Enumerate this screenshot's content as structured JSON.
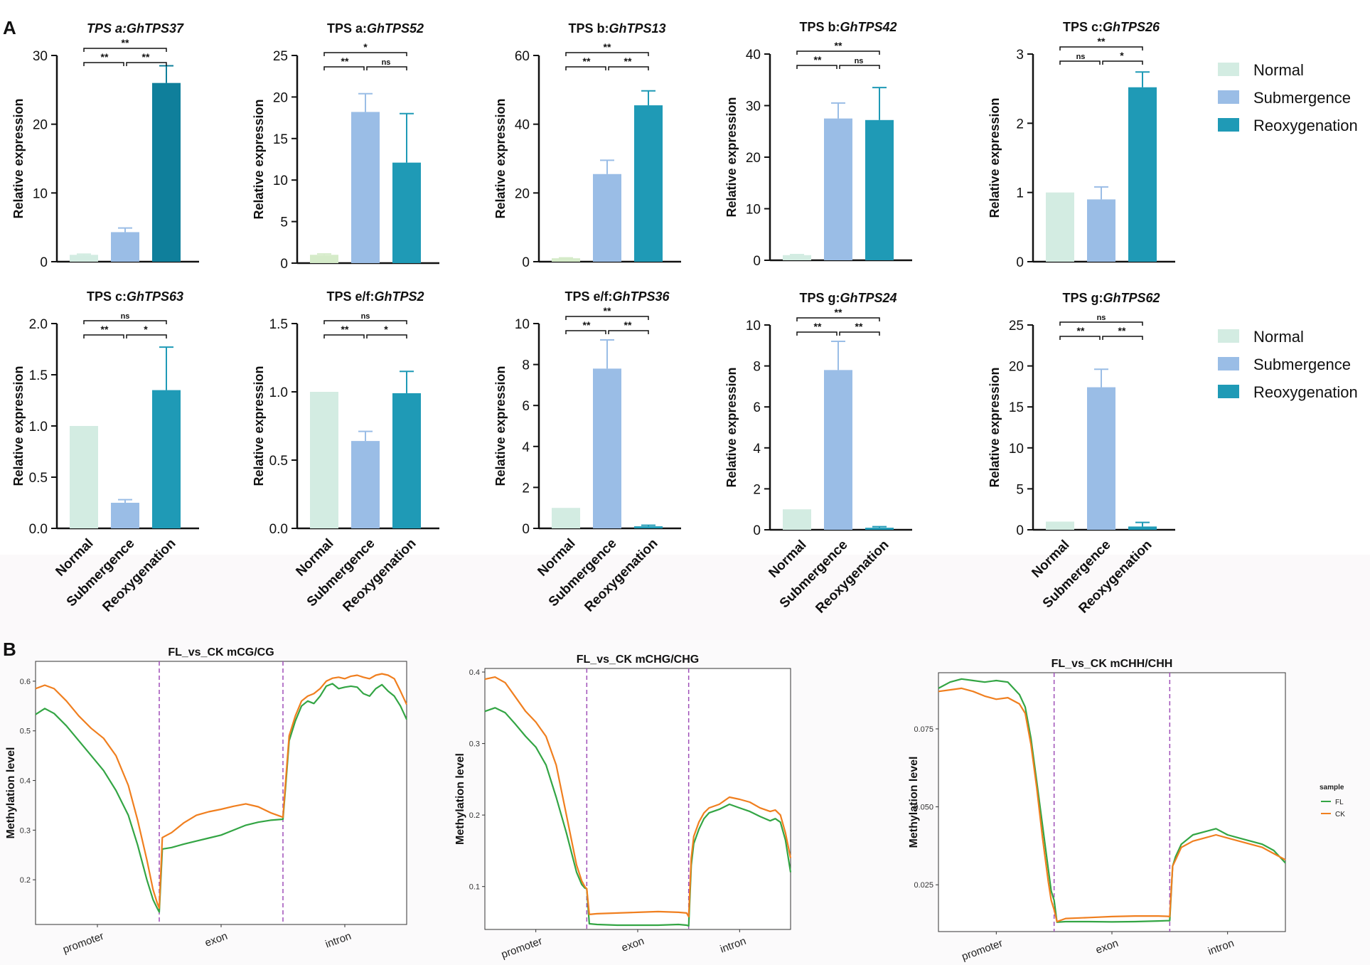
{
  "figure": {
    "panel_a_label": "A",
    "panel_b_label": "B"
  },
  "colors": {
    "normal": "#d3ece2",
    "normal_green": "#d5ebc9",
    "submergence": "#9abde6",
    "reoxygenation": "#1f9ab6",
    "reoxygenation_dark": "#0f7f9b",
    "fl": "#33a544",
    "ck": "#f07f1f",
    "divider": "#9f4fb8"
  },
  "legend": {
    "items": [
      "Normal",
      "Submergence",
      "Reoxygenation"
    ]
  },
  "bar_common": {
    "ylabel": "Relative expression",
    "categories": [
      "Normal",
      "Submergence",
      "Reoxygenation"
    ]
  },
  "chart_data": [
    {
      "type": "bar",
      "title_prefix": "TPS a:",
      "title_gene": "GhTPS37",
      "title_italic_all": true,
      "ylim": [
        0,
        30
      ],
      "yticks": [
        "0",
        "10",
        "20",
        "30"
      ],
      "values": [
        1,
        4.3,
        26
      ],
      "errors": [
        0.1,
        0.6,
        2.5
      ],
      "sig": [
        {
          "label": "**",
          "pair": "1-2",
          "level": 1
        },
        {
          "label": "**",
          "pair": "2-3",
          "level": 1
        },
        {
          "label": "**",
          "pair": "1-3",
          "level": 2
        }
      ]
    },
    {
      "type": "bar",
      "title_prefix": "TPS a:",
      "title_gene": "GhTPS52",
      "ylim": [
        0,
        25
      ],
      "yticks": [
        "0",
        "5",
        "10",
        "15",
        "20",
        "25"
      ],
      "values": [
        1,
        18.2,
        12.1
      ],
      "errors": [
        0.1,
        2.2,
        5.9
      ],
      "sig": [
        {
          "label": "**",
          "pair": "1-2",
          "level": 1
        },
        {
          "label": "ns",
          "pair": "2-3",
          "level": 1
        },
        {
          "label": "*",
          "pair": "1-3",
          "level": 2
        }
      ]
    },
    {
      "type": "bar",
      "title_prefix": "TPS b:",
      "title_gene": "GhTPS13",
      "ylim": [
        0,
        60
      ],
      "yticks": [
        "0",
        "20",
        "40",
        "60"
      ],
      "values": [
        1,
        25.5,
        45.5
      ],
      "errors": [
        0.1,
        4,
        4.2
      ],
      "sig": [
        {
          "label": "**",
          "pair": "1-2",
          "level": 1
        },
        {
          "label": "**",
          "pair": "2-3",
          "level": 1
        },
        {
          "label": "**",
          "pair": "1-3",
          "level": 2
        }
      ]
    },
    {
      "type": "bar",
      "title_prefix": "TPS b:",
      "title_gene": "GhTPS42",
      "ylim": [
        0,
        40
      ],
      "yticks": [
        "0",
        "10",
        "20",
        "30",
        "40"
      ],
      "values": [
        1,
        27.5,
        27.2
      ],
      "errors": [
        0.1,
        3,
        6.3
      ],
      "sig": [
        {
          "label": "**",
          "pair": "1-2",
          "level": 1
        },
        {
          "label": "ns",
          "pair": "2-3",
          "level": 1
        },
        {
          "label": "**",
          "pair": "1-3",
          "level": 2
        }
      ]
    },
    {
      "type": "bar",
      "title_prefix": "TPS c:",
      "title_gene": "GhTPS26",
      "ylim": [
        0,
        3
      ],
      "yticks": [
        "0",
        "1",
        "2",
        "3"
      ],
      "values": [
        1,
        0.9,
        2.52
      ],
      "errors": [
        0,
        0.18,
        0.22
      ],
      "sig": [
        {
          "label": "ns",
          "pair": "1-2",
          "level": 1
        },
        {
          "label": "*",
          "pair": "2-3",
          "level": 1
        },
        {
          "label": "**",
          "pair": "1-3",
          "level": 2
        }
      ]
    },
    {
      "type": "bar",
      "title_prefix": "TPS c:",
      "title_gene": "GhTPS63",
      "ylim": [
        0,
        2
      ],
      "yticks": [
        "0.0",
        "0.5",
        "1.0",
        "1.5",
        "2.0"
      ],
      "values": [
        1,
        0.25,
        1.35
      ],
      "errors": [
        0,
        0.03,
        0.42
      ],
      "sig": [
        {
          "label": "**",
          "pair": "1-2",
          "level": 1
        },
        {
          "label": "*",
          "pair": "2-3",
          "level": 1
        },
        {
          "label": "ns",
          "pair": "1-3",
          "level": 2
        }
      ]
    },
    {
      "type": "bar",
      "title_prefix": "TPS e/f:",
      "title_gene": "GhTPS2",
      "ylim": [
        0,
        1.5
      ],
      "yticks": [
        "0.0",
        "0.5",
        "1.0",
        "1.5"
      ],
      "values": [
        1,
        0.64,
        0.99
      ],
      "errors": [
        0,
        0.07,
        0.16
      ],
      "sig": [
        {
          "label": "**",
          "pair": "1-2",
          "level": 1
        },
        {
          "label": "*",
          "pair": "2-3",
          "level": 1
        },
        {
          "label": "ns",
          "pair": "1-3",
          "level": 2
        }
      ]
    },
    {
      "type": "bar",
      "title_prefix": "TPS e/f:",
      "title_gene": "GhTPS36",
      "ylim": [
        0,
        10
      ],
      "yticks": [
        "0",
        "2",
        "4",
        "6",
        "8",
        "10"
      ],
      "values": [
        1,
        7.8,
        0.1
      ],
      "errors": [
        0,
        1.4,
        0.05
      ],
      "sig": [
        {
          "label": "**",
          "pair": "1-2",
          "level": 1
        },
        {
          "label": "**",
          "pair": "2-3",
          "level": 1
        },
        {
          "label": "**",
          "pair": "1-3",
          "level": 2
        }
      ]
    },
    {
      "type": "bar",
      "title_prefix": "TPS g:",
      "title_gene": "GhTPS24",
      "ylim": [
        0,
        10
      ],
      "yticks": [
        "0",
        "2",
        "4",
        "6",
        "8",
        "10"
      ],
      "values": [
        1,
        7.8,
        0.1
      ],
      "errors": [
        0,
        1.4,
        0.05
      ],
      "sig": [
        {
          "label": "**",
          "pair": "1-2",
          "level": 1
        },
        {
          "label": "**",
          "pair": "2-3",
          "level": 1
        },
        {
          "label": "**",
          "pair": "1-3",
          "level": 2
        }
      ]
    },
    {
      "type": "bar",
      "title_prefix": "TPS g:",
      "title_gene": "GhTPS62",
      "ylim": [
        0,
        25
      ],
      "yticks": [
        "0",
        "5",
        "10",
        "15",
        "20",
        "25"
      ],
      "values": [
        1,
        17.4,
        0.4
      ],
      "errors": [
        0,
        2.2,
        0.5
      ],
      "sig": [
        {
          "label": "**",
          "pair": "1-2",
          "level": 1
        },
        {
          "label": "**",
          "pair": "2-3",
          "level": 1
        },
        {
          "label": "ns",
          "pair": "1-3",
          "level": 2
        }
      ]
    },
    {
      "type": "line",
      "title": "FL_vs_CK mCG/CG",
      "ylabel": "Methylation level",
      "ylim": [
        0.11,
        0.64
      ],
      "yticks": [
        {
          "v": 0.2,
          "t": "0.2"
        },
        {
          "v": 0.3,
          "t": "0.3"
        },
        {
          "v": 0.4,
          "t": "0.4"
        },
        {
          "v": 0.5,
          "t": "0.5"
        },
        {
          "v": 0.6,
          "t": "0.6"
        }
      ],
      "xlim": [
        0,
        60
      ],
      "xticks": [
        {
          "v": 10,
          "t": "promoter"
        },
        {
          "v": 30,
          "t": "exon"
        },
        {
          "v": 50,
          "t": "intron"
        }
      ],
      "dividers": [
        20,
        40
      ],
      "series": [
        {
          "name": "FL",
          "x": [
            0,
            1.5,
            3,
            5,
            7,
            9,
            11,
            13,
            15,
            16.5,
            18,
            19,
            19.7,
            20,
            20.5,
            22,
            24,
            26,
            28,
            30,
            32,
            34,
            36,
            38,
            40,
            40.5,
            41,
            42,
            43,
            44,
            45,
            46,
            47,
            48,
            49,
            50,
            51,
            52,
            53,
            54,
            55,
            56,
            57,
            58,
            59,
            60
          ],
          "y": [
            0.533,
            0.545,
            0.535,
            0.51,
            0.48,
            0.45,
            0.42,
            0.38,
            0.33,
            0.27,
            0.2,
            0.16,
            0.142,
            0.135,
            0.262,
            0.265,
            0.272,
            0.278,
            0.284,
            0.29,
            0.3,
            0.31,
            0.316,
            0.32,
            0.322,
            0.4,
            0.48,
            0.52,
            0.55,
            0.56,
            0.555,
            0.57,
            0.59,
            0.595,
            0.585,
            0.588,
            0.59,
            0.588,
            0.575,
            0.57,
            0.585,
            0.593,
            0.58,
            0.57,
            0.55,
            0.523
          ]
        },
        {
          "name": "CK",
          "x": [
            0,
            1.5,
            3,
            5,
            7,
            9,
            11,
            13,
            15,
            16.5,
            18,
            19,
            19.7,
            20,
            20.5,
            22,
            24,
            26,
            28,
            30,
            32,
            34,
            36,
            38,
            40,
            40.5,
            41,
            42,
            43,
            44,
            45,
            46,
            47,
            48,
            49,
            50,
            51,
            52,
            53,
            54,
            55,
            56,
            57,
            58,
            59,
            60
          ],
          "y": [
            0.585,
            0.592,
            0.585,
            0.56,
            0.53,
            0.505,
            0.485,
            0.45,
            0.39,
            0.32,
            0.24,
            0.18,
            0.152,
            0.143,
            0.285,
            0.295,
            0.315,
            0.33,
            0.337,
            0.342,
            0.348,
            0.353,
            0.347,
            0.335,
            0.326,
            0.41,
            0.49,
            0.53,
            0.56,
            0.57,
            0.575,
            0.585,
            0.6,
            0.606,
            0.608,
            0.605,
            0.61,
            0.612,
            0.608,
            0.605,
            0.612,
            0.615,
            0.612,
            0.605,
            0.58,
            0.553
          ]
        }
      ],
      "legend": null
    },
    {
      "type": "line",
      "title": "FL_vs_CK mCHG/CHG",
      "ylabel": "Methylation level",
      "ylim": [
        0.04,
        0.405
      ],
      "yticks": [
        {
          "v": 0.1,
          "t": "0.1"
        },
        {
          "v": 0.2,
          "t": "0.2"
        },
        {
          "v": 0.3,
          "t": "0.3"
        },
        {
          "v": 0.4,
          "t": "0.4"
        }
      ],
      "xlim": [
        0,
        60
      ],
      "xticks": [
        {
          "v": 10,
          "t": "promoter"
        },
        {
          "v": 30,
          "t": "exon"
        },
        {
          "v": 50,
          "t": "intron"
        }
      ],
      "dividers": [
        20,
        40
      ],
      "series": [
        {
          "name": "FL",
          "x": [
            0,
            2,
            4,
            6,
            8,
            10,
            12,
            14,
            16,
            18,
            19,
            19.6,
            20,
            20.5,
            22,
            26,
            30,
            34,
            38,
            39.6,
            40,
            40.5,
            41,
            42,
            43,
            44,
            46,
            48,
            50,
            52,
            54,
            56,
            57,
            58,
            59,
            60
          ],
          "y": [
            0.345,
            0.35,
            0.343,
            0.327,
            0.31,
            0.295,
            0.27,
            0.225,
            0.175,
            0.12,
            0.103,
            0.098,
            0.097,
            0.048,
            0.047,
            0.046,
            0.046,
            0.046,
            0.047,
            0.046,
            0.045,
            0.13,
            0.16,
            0.18,
            0.195,
            0.203,
            0.208,
            0.215,
            0.21,
            0.205,
            0.198,
            0.192,
            0.195,
            0.19,
            0.165,
            0.12
          ]
        },
        {
          "name": "CK",
          "x": [
            0,
            2,
            4,
            6,
            8,
            10,
            12,
            14,
            16,
            18,
            19,
            19.6,
            20,
            20.5,
            22,
            26,
            30,
            34,
            38,
            39.6,
            40,
            40.5,
            41,
            42,
            43,
            44,
            46,
            48,
            50,
            52,
            54,
            56,
            57,
            58,
            59,
            60
          ],
          "y": [
            0.39,
            0.393,
            0.385,
            0.365,
            0.345,
            0.33,
            0.31,
            0.27,
            0.2,
            0.13,
            0.108,
            0.1,
            0.097,
            0.061,
            0.062,
            0.063,
            0.064,
            0.065,
            0.064,
            0.063,
            0.058,
            0.14,
            0.17,
            0.19,
            0.203,
            0.21,
            0.215,
            0.225,
            0.222,
            0.218,
            0.21,
            0.205,
            0.207,
            0.2,
            0.175,
            0.14
          ]
        }
      ],
      "legend": null
    },
    {
      "type": "line",
      "title": "FL_vs_CK mCHH/CHH",
      "ylabel": "Methylation level",
      "ylim": [
        0.01,
        0.093
      ],
      "yticks": [
        {
          "v": 0.025,
          "t": "0.025"
        },
        {
          "v": 0.05,
          "t": "0.050"
        },
        {
          "v": 0.075,
          "t": "0.075"
        }
      ],
      "xlim": [
        0,
        60
      ],
      "xticks": [
        {
          "v": 10,
          "t": "promoter"
        },
        {
          "v": 30,
          "t": "exon"
        },
        {
          "v": 50,
          "t": "intron"
        }
      ],
      "dividers": [
        20,
        40
      ],
      "series": [
        {
          "name": "FL",
          "x": [
            0,
            2,
            4,
            6,
            8,
            10,
            12,
            14,
            15,
            16,
            17,
            18,
            19,
            19.5,
            20,
            20.5,
            22,
            26,
            30,
            34,
            38,
            39.5,
            40,
            40.5,
            41,
            42,
            44,
            46,
            48,
            50,
            52,
            54,
            56,
            58,
            60
          ],
          "y": [
            0.088,
            0.09,
            0.091,
            0.0905,
            0.09,
            0.0905,
            0.09,
            0.086,
            0.082,
            0.072,
            0.058,
            0.044,
            0.03,
            0.023,
            0.02,
            0.013,
            0.0132,
            0.0132,
            0.0131,
            0.0132,
            0.0134,
            0.0135,
            0.0135,
            0.031,
            0.034,
            0.038,
            0.041,
            0.042,
            0.043,
            0.041,
            0.04,
            0.039,
            0.038,
            0.036,
            0.032
          ]
        },
        {
          "name": "CK",
          "x": [
            0,
            2,
            4,
            6,
            8,
            10,
            12,
            14,
            15,
            16,
            17,
            18,
            19,
            19.5,
            20,
            20.5,
            22,
            26,
            30,
            34,
            38,
            39.5,
            40,
            40.5,
            41,
            42,
            44,
            46,
            48,
            50,
            52,
            54,
            56,
            58,
            60
          ],
          "y": [
            0.087,
            0.0875,
            0.088,
            0.087,
            0.0855,
            0.0845,
            0.085,
            0.083,
            0.08,
            0.07,
            0.056,
            0.04,
            0.026,
            0.02,
            0.017,
            0.0132,
            0.0142,
            0.0145,
            0.0148,
            0.015,
            0.015,
            0.0149,
            0.0148,
            0.031,
            0.033,
            0.037,
            0.039,
            0.04,
            0.041,
            0.04,
            0.039,
            0.038,
            0.037,
            0.035,
            0.033
          ]
        }
      ],
      "legend": {
        "title": "sample",
        "items": [
          "FL",
          "CK"
        ]
      }
    }
  ]
}
